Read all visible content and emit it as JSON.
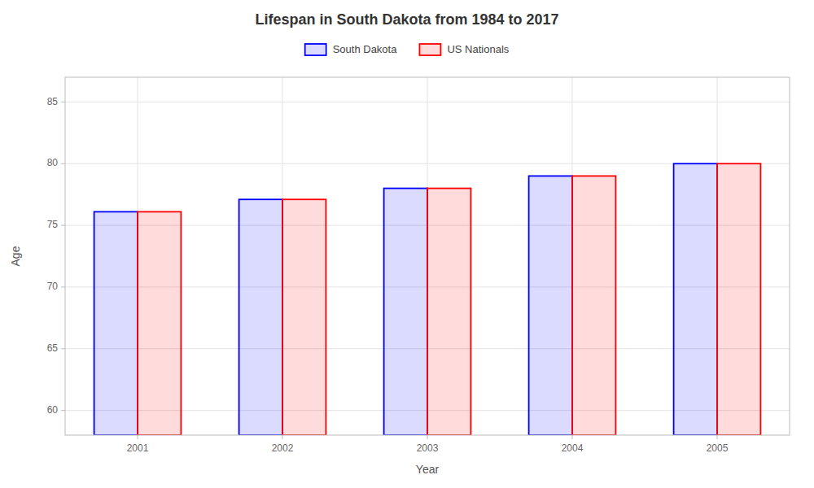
{
  "chart_data": {
    "type": "bar",
    "title": "Lifespan in South Dakota from 1984 to 2017",
    "xlabel": "Year",
    "ylabel": "Age",
    "categories": [
      "2001",
      "2002",
      "2003",
      "2004",
      "2005"
    ],
    "series": [
      {
        "name": "South Dakota",
        "color": "#0000ff",
        "values": [
          76.1,
          77.1,
          78.0,
          79.0,
          80.0
        ]
      },
      {
        "name": "US Nationals",
        "color": "#ff0000",
        "values": [
          76.1,
          77.1,
          78.0,
          79.0,
          80.0
        ]
      }
    ],
    "ylim": [
      58,
      87
    ],
    "yticks": [
      60,
      65,
      70,
      75,
      80,
      85
    ],
    "grid": true,
    "legend": "top"
  }
}
